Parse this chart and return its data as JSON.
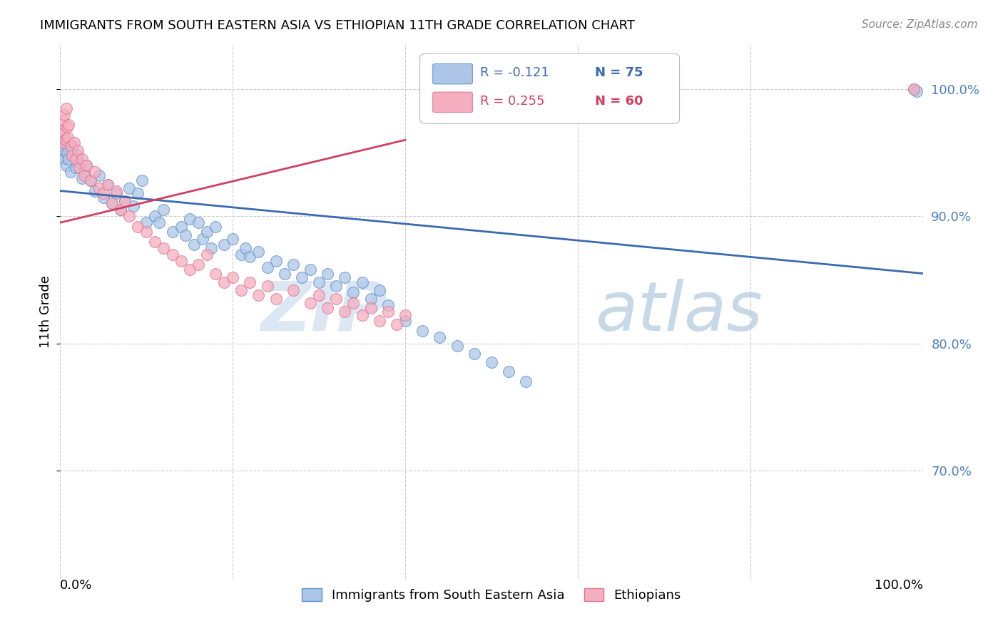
{
  "title": "IMMIGRANTS FROM SOUTH EASTERN ASIA VS ETHIOPIAN 11TH GRADE CORRELATION CHART",
  "source": "Source: ZipAtlas.com",
  "ylabel": "11th Grade",
  "legend_label_blue": "Immigrants from South Eastern Asia",
  "legend_label_pink": "Ethiopians",
  "blue_color": "#adc6e8",
  "pink_color": "#f5afc0",
  "blue_edge_color": "#5b8fc9",
  "pink_edge_color": "#e07090",
  "blue_line_color": "#3a6ab0",
  "pink_line_color": "#d04060",
  "legend_r_blue": "R = -0.121",
  "legend_n_blue": "N = 75",
  "legend_r_pink": "R = 0.255",
  "legend_n_pink": "N = 60",
  "right_tick_color": "#4a7fc0",
  "xlim": [
    0.0,
    1.0
  ],
  "ylim": [
    0.615,
    1.035
  ],
  "ytick_values": [
    0.7,
    0.8,
    0.9,
    1.0
  ],
  "ytick_labels": [
    "70.0%",
    "80.0%",
    "90.0%",
    "100.0%"
  ],
  "grid_color": "#cccccc",
  "watermark_zip_color": "#c5d8ee",
  "watermark_atlas_color": "#9ab8d4",
  "blue_scatter_x": [
    0.001,
    0.002,
    0.003,
    0.004,
    0.005,
    0.006,
    0.007,
    0.008,
    0.01,
    0.012,
    0.015,
    0.018,
    0.02,
    0.022,
    0.025,
    0.028,
    0.03,
    0.035,
    0.04,
    0.045,
    0.05,
    0.055,
    0.06,
    0.065,
    0.07,
    0.075,
    0.08,
    0.085,
    0.09,
    0.095,
    0.1,
    0.11,
    0.115,
    0.12,
    0.13,
    0.14,
    0.145,
    0.15,
    0.155,
    0.16,
    0.165,
    0.17,
    0.175,
    0.18,
    0.19,
    0.2,
    0.21,
    0.215,
    0.22,
    0.23,
    0.24,
    0.25,
    0.26,
    0.27,
    0.28,
    0.29,
    0.3,
    0.31,
    0.32,
    0.33,
    0.34,
    0.35,
    0.36,
    0.37,
    0.38,
    0.4,
    0.42,
    0.44,
    0.46,
    0.48,
    0.5,
    0.52,
    0.54,
    0.99,
    0.993
  ],
  "blue_scatter_y": [
    0.955,
    0.948,
    0.96,
    0.952,
    0.945,
    0.958,
    0.94,
    0.95,
    0.945,
    0.935,
    0.955,
    0.938,
    0.948,
    0.942,
    0.93,
    0.935,
    0.94,
    0.928,
    0.92,
    0.932,
    0.915,
    0.925,
    0.91,
    0.918,
    0.905,
    0.912,
    0.922,
    0.908,
    0.918,
    0.928,
    0.895,
    0.9,
    0.895,
    0.905,
    0.888,
    0.892,
    0.885,
    0.898,
    0.878,
    0.895,
    0.882,
    0.888,
    0.875,
    0.892,
    0.878,
    0.882,
    0.87,
    0.875,
    0.868,
    0.872,
    0.86,
    0.865,
    0.855,
    0.862,
    0.852,
    0.858,
    0.848,
    0.855,
    0.845,
    0.852,
    0.84,
    0.848,
    0.835,
    0.842,
    0.83,
    0.818,
    0.81,
    0.805,
    0.798,
    0.792,
    0.785,
    0.778,
    0.77,
    1.0,
    0.998
  ],
  "pink_scatter_x": [
    0.001,
    0.002,
    0.003,
    0.004,
    0.005,
    0.006,
    0.007,
    0.008,
    0.009,
    0.01,
    0.012,
    0.014,
    0.016,
    0.018,
    0.02,
    0.022,
    0.025,
    0.028,
    0.03,
    0.035,
    0.04,
    0.045,
    0.05,
    0.055,
    0.06,
    0.065,
    0.07,
    0.075,
    0.08,
    0.09,
    0.1,
    0.11,
    0.12,
    0.13,
    0.14,
    0.15,
    0.16,
    0.17,
    0.18,
    0.19,
    0.2,
    0.21,
    0.22,
    0.23,
    0.24,
    0.25,
    0.27,
    0.29,
    0.3,
    0.31,
    0.32,
    0.33,
    0.34,
    0.35,
    0.36,
    0.37,
    0.38,
    0.39,
    0.4,
    0.99
  ],
  "pink_scatter_y": [
    0.968,
    0.958,
    0.975,
    0.965,
    0.98,
    0.96,
    0.985,
    0.97,
    0.962,
    0.972,
    0.955,
    0.948,
    0.958,
    0.945,
    0.952,
    0.938,
    0.945,
    0.932,
    0.94,
    0.928,
    0.935,
    0.922,
    0.918,
    0.925,
    0.91,
    0.92,
    0.905,
    0.912,
    0.9,
    0.892,
    0.888,
    0.88,
    0.875,
    0.87,
    0.865,
    0.858,
    0.862,
    0.87,
    0.855,
    0.848,
    0.852,
    0.842,
    0.848,
    0.838,
    0.845,
    0.835,
    0.842,
    0.832,
    0.838,
    0.828,
    0.835,
    0.825,
    0.832,
    0.822,
    0.828,
    0.818,
    0.825,
    0.815,
    0.822,
    1.0
  ],
  "blue_trend": [
    0.0,
    1.0,
    0.92,
    0.855
  ],
  "pink_trend": [
    0.0,
    0.4,
    0.895,
    0.96
  ],
  "background_color": "#ffffff"
}
